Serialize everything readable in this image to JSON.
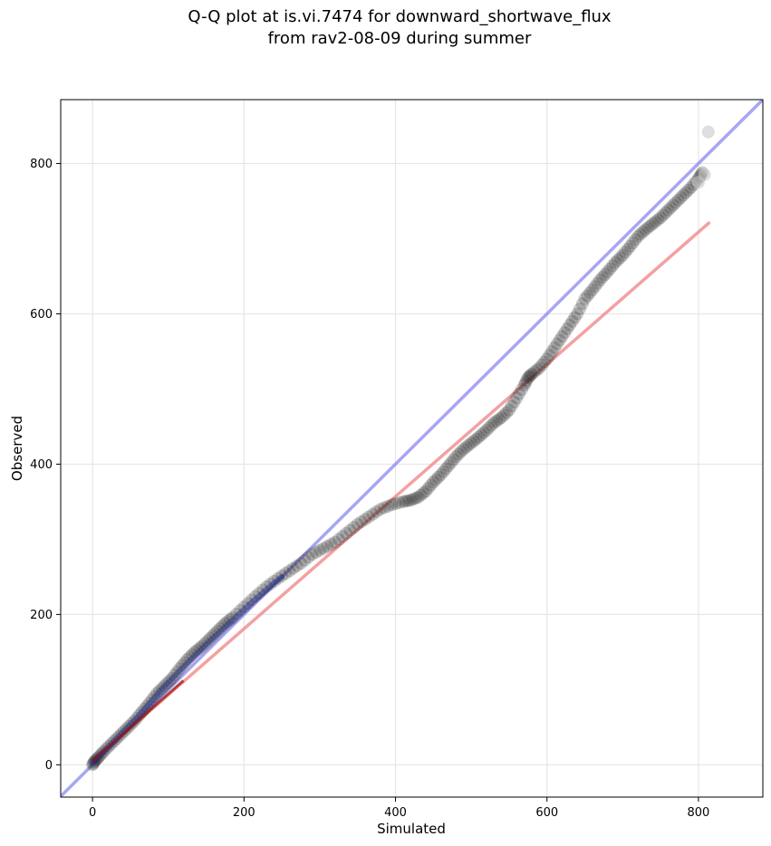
{
  "chart_data": {
    "type": "scatter",
    "title_line1": "Q-Q plot at is.vi.7474 for downward_shortwave_flux",
    "title_line2": "from rav2-08-09 during summer",
    "xlabel": "Simulated",
    "ylabel": "Observed",
    "xlim": [
      -42,
      885
    ],
    "ylim": [
      -43,
      885
    ],
    "xticks": [
      0,
      200,
      400,
      600,
      800
    ],
    "yticks": [
      0,
      200,
      400,
      600,
      800
    ],
    "xtick_labels": [
      "0",
      "200",
      "400",
      "600",
      "800"
    ],
    "ytick_labels": [
      "0",
      "200",
      "400",
      "600",
      "800"
    ],
    "grid": true,
    "colors": {
      "points": "#1a1a1a",
      "tail_points": "#c8c8c8",
      "identity_line": "#8080f0",
      "fit_line": "#f08a8a",
      "low_fit_segment": "#9a1010",
      "low_highlight": "#1c2a8a"
    },
    "identity_line": {
      "x": [
        -42,
        885
      ],
      "y": [
        -42,
        885
      ]
    },
    "fit_line": {
      "x": [
        0,
        815
      ],
      "y": [
        5,
        722
      ]
    },
    "qq_points": {
      "x": [
        0,
        3,
        8,
        15,
        25,
        35,
        45,
        55,
        65,
        75,
        85,
        95,
        105,
        115,
        125,
        135,
        145,
        155,
        165,
        175,
        185,
        200,
        215,
        230,
        245,
        260,
        275,
        290,
        305,
        320,
        335,
        350,
        365,
        380,
        395,
        410,
        420,
        430,
        440,
        450,
        460,
        470,
        480,
        490,
        500,
        510,
        520,
        530,
        540,
        550,
        560,
        570,
        575,
        580,
        590,
        600,
        610,
        620,
        630,
        640,
        650,
        660,
        670,
        680,
        690,
        700,
        710,
        720,
        730,
        740,
        750,
        760,
        770,
        780,
        790,
        800,
        805
      ],
      "y": [
        0,
        5,
        10,
        18,
        28,
        38,
        48,
        58,
        70,
        82,
        95,
        105,
        115,
        128,
        140,
        150,
        158,
        168,
        178,
        188,
        196,
        210,
        224,
        237,
        248,
        258,
        268,
        280,
        288,
        296,
        308,
        320,
        330,
        340,
        346,
        350,
        352,
        356,
        364,
        376,
        386,
        398,
        410,
        420,
        428,
        436,
        445,
        455,
        462,
        472,
        488,
        505,
        515,
        520,
        528,
        540,
        555,
        570,
        585,
        600,
        620,
        632,
        645,
        656,
        668,
        678,
        690,
        703,
        712,
        720,
        728,
        738,
        748,
        758,
        768,
        780,
        788
      ]
    },
    "tail_points": {
      "x": [
        800,
        808,
        813
      ],
      "y": [
        775,
        785,
        842
      ]
    }
  }
}
